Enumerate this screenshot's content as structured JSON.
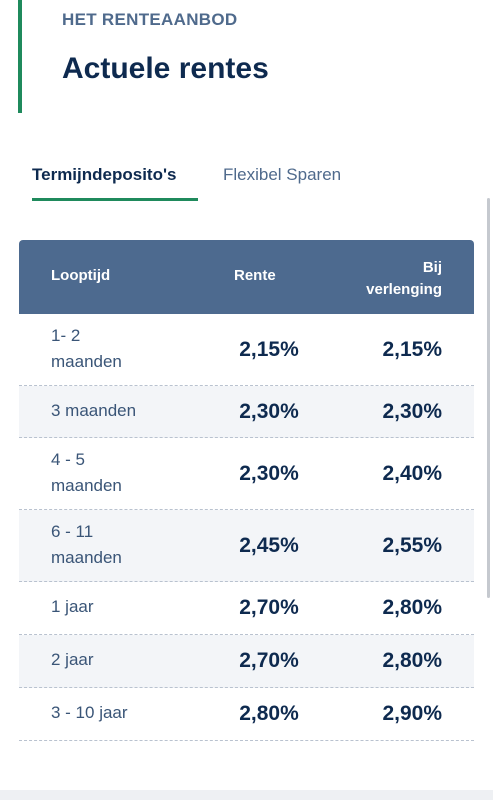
{
  "header": {
    "eyebrow": "HET RENTEAANBOD",
    "title": "Actuele rentes"
  },
  "tabs": [
    {
      "label": "Termijndeposito's",
      "active": true
    },
    {
      "label": "Flexibel Sparen",
      "active": false
    }
  ],
  "table": {
    "headers": {
      "looptijd": "Looptijd",
      "rente": "Rente",
      "bij_line1": "Bij",
      "bij_line2": "verlenging"
    },
    "rows": [
      {
        "term_line1": "1- 2",
        "term_line2": "maanden",
        "rente": "2,15%",
        "bij": "2,15%"
      },
      {
        "term_line1": "3 maanden",
        "term_line2": "",
        "rente": "2,30%",
        "bij": "2,30%"
      },
      {
        "term_line1": "4 - 5",
        "term_line2": "maanden",
        "rente": "2,30%",
        "bij": "2,40%"
      },
      {
        "term_line1": "6 - 11",
        "term_line2": "maanden",
        "rente": "2,45%",
        "bij": "2,55%"
      },
      {
        "term_line1": "1 jaar",
        "term_line2": "",
        "rente": "2,70%",
        "bij": "2,80%"
      },
      {
        "term_line1": "2 jaar",
        "term_line2": "",
        "rente": "2,70%",
        "bij": "2,80%"
      },
      {
        "term_line1": "3 - 10 jaar",
        "term_line2": "",
        "rente": "2,80%",
        "bij": "2,90%"
      }
    ]
  },
  "colors": {
    "accent": "#1f8a5c",
    "header_bg": "#4d6a8f",
    "text_dark": "#0e2a4f"
  }
}
